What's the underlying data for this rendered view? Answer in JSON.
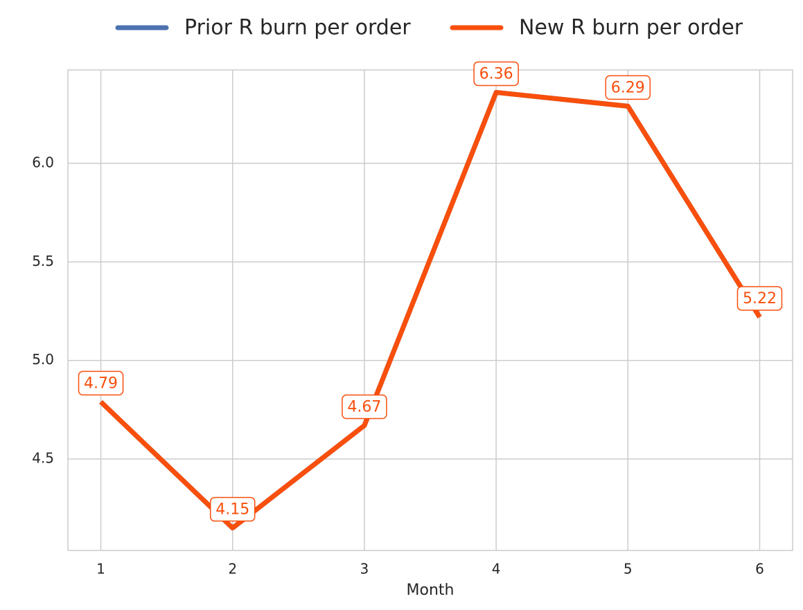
{
  "chart_data": {
    "type": "line",
    "x_label": "Month",
    "x": [
      1,
      2,
      3,
      4,
      5,
      6
    ],
    "series": [
      {
        "name": "Prior R burn per order",
        "color": "#4c72b0",
        "values": [
          4.79,
          4.15,
          4.67,
          6.36,
          6.29,
          5.22
        ]
      },
      {
        "name": "New R burn per order",
        "color": "#f84f0c",
        "values": [
          4.79,
          4.15,
          4.67,
          6.36,
          6.29,
          5.22
        ],
        "data_labels": true
      }
    ],
    "xlim": [
      0.75,
      6.25
    ],
    "xticks": [
      1,
      2,
      3,
      4,
      5,
      6
    ],
    "ylim": [
      4.036,
      6.474
    ],
    "yticks": [
      4.5,
      {
        "value": 5,
        "label": "5.0"
      },
      5.5,
      {
        "value": 6,
        "label": "6.0"
      }
    ],
    "grid": true,
    "legend": "top"
  }
}
